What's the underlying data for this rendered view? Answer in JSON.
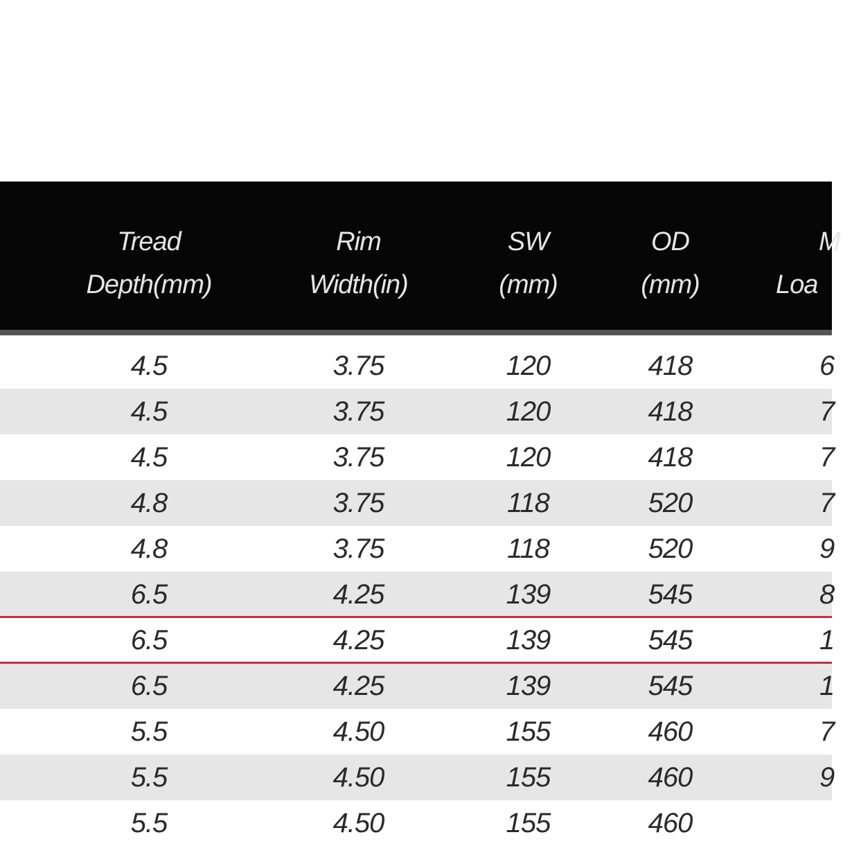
{
  "table": {
    "headers": [
      {
        "line1": "",
        "line2": ""
      },
      {
        "line1": "Tread",
        "line2": "Depth(mm)"
      },
      {
        "line1": "Rim",
        "line2": "Width(in)"
      },
      {
        "line1": "SW",
        "line2": "(mm)"
      },
      {
        "line1": "OD",
        "line2": "(mm)"
      },
      {
        "line1": "M",
        "line2": "Loa"
      }
    ],
    "rows": [
      {
        "tread": "4.5",
        "rim": "3.75",
        "sw": "120",
        "od": "418",
        "load": "6"
      },
      {
        "tread": "4.5",
        "rim": "3.75",
        "sw": "120",
        "od": "418",
        "load": "7"
      },
      {
        "tread": "4.5",
        "rim": "3.75",
        "sw": "120",
        "od": "418",
        "load": "7"
      },
      {
        "tread": "4.8",
        "rim": "3.75",
        "sw": "118",
        "od": "520",
        "load": "7"
      },
      {
        "tread": "4.8",
        "rim": "3.75",
        "sw": "118",
        "od": "520",
        "load": "9"
      },
      {
        "tread": "6.5",
        "rim": "4.25",
        "sw": "139",
        "od": "545",
        "load": "8"
      },
      {
        "tread": "6.5",
        "rim": "4.25",
        "sw": "139",
        "od": "545",
        "load": "1"
      },
      {
        "tread": "6.5",
        "rim": "4.25",
        "sw": "139",
        "od": "545",
        "load": "1"
      },
      {
        "tread": "5.5",
        "rim": "4.50",
        "sw": "155",
        "od": "460",
        "load": "7"
      },
      {
        "tread": "5.5",
        "rim": "4.50",
        "sw": "155",
        "od": "460",
        "load": "9"
      },
      {
        "tread": "5.5",
        "rim": "4.50",
        "sw": "155",
        "od": "460",
        "load": ""
      }
    ],
    "highlighted_row": 6,
    "colors": {
      "header_bg": "#060606",
      "header_text": "#e6e6e6",
      "stripe": "#e6e6e6",
      "highlight_border": "#c0303a"
    }
  }
}
